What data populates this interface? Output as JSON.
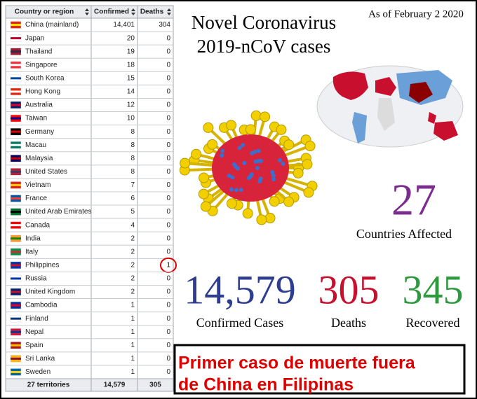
{
  "table": {
    "headers": [
      "Country or region",
      "Confirmed",
      "Deaths"
    ],
    "rows": [
      [
        "China",
        "14,401",
        304
      ],
      [
        "Japan",
        20,
        0
      ],
      [
        "Thailand",
        19,
        0
      ],
      [
        "Singapore",
        18,
        0
      ],
      [
        "South Korea",
        15,
        0
      ],
      [
        "Hong Kong",
        14,
        0
      ],
      [
        "Australia",
        12,
        0
      ],
      [
        "Taiwan",
        10,
        0
      ],
      [
        "Germany",
        8,
        0
      ],
      [
        "Macau",
        8,
        0
      ],
      [
        "Malaysia",
        8,
        0
      ],
      [
        "United States",
        8,
        0
      ],
      [
        "Vietnam",
        7,
        0
      ],
      [
        "France",
        6,
        0
      ],
      [
        "United Arab Emirates",
        5,
        0
      ],
      [
        "Canada",
        4,
        0
      ],
      [
        "India",
        2,
        0
      ],
      [
        "Italy",
        2,
        0
      ],
      [
        "Philippines",
        2,
        1
      ],
      [
        "Russia",
        2,
        0
      ],
      [
        "United Kingdom",
        2,
        0
      ],
      [
        "Cambodia",
        1,
        0
      ],
      [
        "Finland",
        1,
        0
      ],
      [
        "Nepal",
        1,
        0
      ],
      [
        "Spain",
        1,
        0
      ],
      [
        "Sri Lanka",
        1,
        0
      ],
      [
        "Sweden",
        1,
        0
      ]
    ],
    "mainland_note": "(mainland)",
    "footer": [
      "27 territories",
      "14,579",
      305
    ]
  },
  "date": "As of February 2 2020",
  "title": [
    "Novel Coronavirus",
    "2019-nCoV cases"
  ],
  "stats": [
    {
      "value": 27,
      "label": "Countries Affected"
    },
    {
      "value": "14,579",
      "label": "Confirmed Cases"
    },
    {
      "value": 305,
      "label": "Deaths"
    },
    {
      "value": 345,
      "label": "Recovered"
    }
  ],
  "caption": [
    "Primer caso de muerte fuera",
    "de China en Filipinas"
  ]
}
